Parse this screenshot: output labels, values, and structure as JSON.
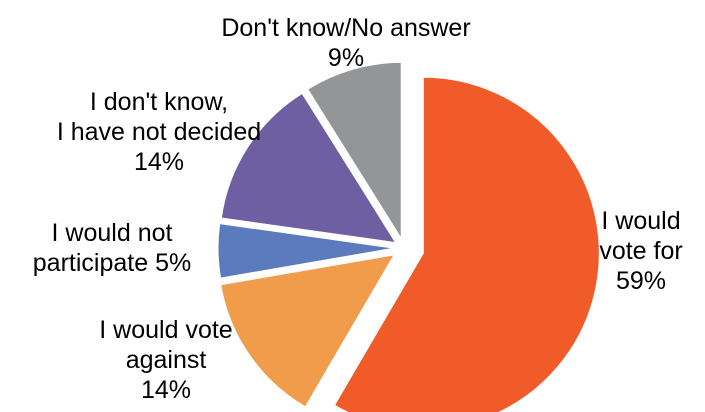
{
  "chart_data": {
    "type": "pie",
    "title": "",
    "start_angle_deg": 0,
    "direction": "clockwise",
    "exploded": true,
    "slices": [
      {
        "label_lines": [
          "I would",
          "vote for",
          "59%"
        ],
        "value": 59,
        "color": "#F15A29"
      },
      {
        "label_lines": [
          "I would vote",
          "against",
          "14%"
        ],
        "value": 14,
        "color": "#F09C4A"
      },
      {
        "label_lines": [
          "I would not",
          "participate 5%"
        ],
        "value": 5,
        "color": "#5B7BBE"
      },
      {
        "label_lines": [
          "I don't know,",
          "I have not decided",
          "14%"
        ],
        "value": 14,
        "color": "#6E5FA3"
      },
      {
        "label_lines": [
          "Don't know/No answer",
          "9%"
        ],
        "value": 9,
        "color": "#939597"
      }
    ]
  }
}
